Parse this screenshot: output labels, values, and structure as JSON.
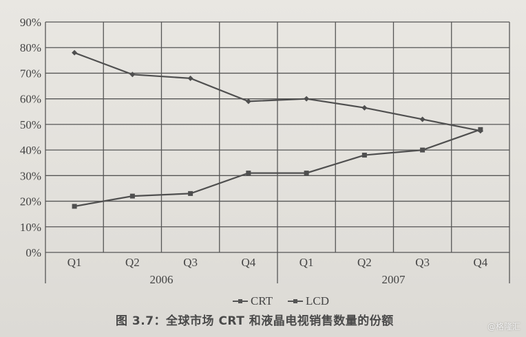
{
  "chart_data": {
    "type": "line",
    "title": "图 3.7：全球市场 CRT 和液晶电视销售数量的份额",
    "xlabel": "",
    "ylabel": "",
    "ylim": [
      0,
      90
    ],
    "y_ticks": [
      "0%",
      "10%",
      "20%",
      "30%",
      "40%",
      "50%",
      "60%",
      "70%",
      "80%",
      "90%"
    ],
    "categories": [
      "Q1",
      "Q2",
      "Q3",
      "Q4",
      "Q1",
      "Q2",
      "Q3",
      "Q4"
    ],
    "category_groups": [
      {
        "label": "2006",
        "span": [
          0,
          3
        ]
      },
      {
        "label": "2007",
        "span": [
          4,
          7
        ]
      }
    ],
    "series": [
      {
        "name": "CRT",
        "marker": "diamond",
        "values": [
          78,
          69.5,
          68,
          59,
          60,
          56.5,
          52,
          47.5
        ]
      },
      {
        "name": "LCD",
        "marker": "square",
        "values": [
          18,
          22,
          23,
          31,
          31,
          38,
          40,
          48
        ]
      }
    ],
    "grid": true,
    "legend_position": "bottom"
  },
  "legend": {
    "items": [
      {
        "label": "CRT"
      },
      {
        "label": "LCD"
      }
    ]
  },
  "caption": "图 3.7：全球市场 CRT 和液晶电视销售数量的份额",
  "watermark": "@格隆汇",
  "colors": {
    "line": "#4f4f4f",
    "grid": "#555555",
    "paper": "#e6e4df"
  }
}
